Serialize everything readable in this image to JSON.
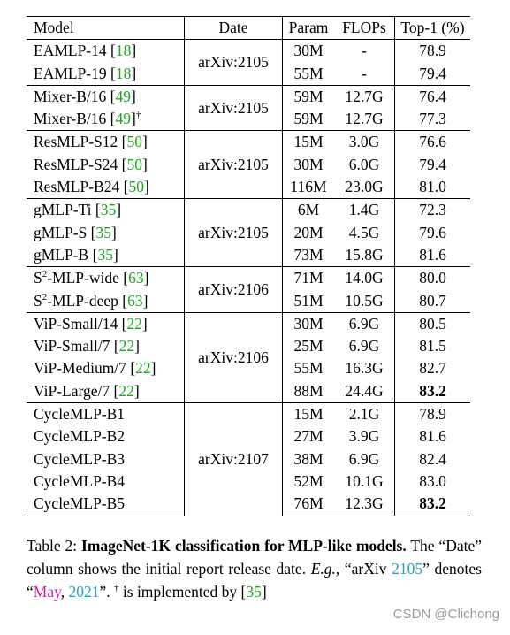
{
  "table": {
    "headers": {
      "model": "Model",
      "date": "Date",
      "param": "Param",
      "flops": "FLOPs",
      "top1": "Top-1 (%)"
    },
    "groups": [
      {
        "date": "arXiv:2105",
        "rows": [
          {
            "model": "EAMLP-14",
            "cite": "18",
            "dagger": "",
            "param": "30M",
            "flops": "-",
            "top1": "78.9",
            "bold": false
          },
          {
            "model": "EAMLP-19",
            "cite": "18",
            "dagger": "",
            "param": "55M",
            "flops": "-",
            "top1": "79.4",
            "bold": false
          }
        ]
      },
      {
        "date": "arXiv:2105",
        "rows": [
          {
            "model": "Mixer-B/16",
            "cite": "49",
            "dagger": "",
            "param": "59M",
            "flops": "12.7G",
            "top1": "76.4",
            "bold": false
          },
          {
            "model": "Mixer-B/16",
            "cite": "49",
            "dagger": "†",
            "param": "59M",
            "flops": "12.7G",
            "top1": "77.3",
            "bold": false
          }
        ]
      },
      {
        "date": "arXiv:2105",
        "rows": [
          {
            "model": "ResMLP-S12",
            "cite": "50",
            "dagger": "",
            "param": "15M",
            "flops": "3.0G",
            "top1": "76.6",
            "bold": false
          },
          {
            "model": "ResMLP-S24",
            "cite": "50",
            "dagger": "",
            "param": "30M",
            "flops": "6.0G",
            "top1": "79.4",
            "bold": false
          },
          {
            "model": "ResMLP-B24",
            "cite": "50",
            "dagger": "",
            "param": "116M",
            "flops": "23.0G",
            "top1": "81.0",
            "bold": false
          }
        ]
      },
      {
        "date": "arXiv:2105",
        "rows": [
          {
            "model": "gMLP-Ti",
            "cite": "35",
            "dagger": "",
            "param": "6M",
            "flops": "1.4G",
            "top1": "72.3",
            "bold": false
          },
          {
            "model": "gMLP-S",
            "cite": "35",
            "dagger": "",
            "param": "20M",
            "flops": "4.5G",
            "top1": "79.6",
            "bold": false
          },
          {
            "model": "gMLP-B",
            "cite": "35",
            "dagger": "",
            "param": "73M",
            "flops": "15.8G",
            "top1": "81.6",
            "bold": false
          }
        ]
      },
      {
        "date": "arXiv:2106",
        "rows": [
          {
            "model": "S",
            "sup": "2",
            "model_rest": "-MLP-wide",
            "cite": "63",
            "dagger": "",
            "param": "71M",
            "flops": "14.0G",
            "top1": "80.0",
            "bold": false
          },
          {
            "model": "S",
            "sup": "2",
            "model_rest": "-MLP-deep",
            "cite": "63",
            "dagger": "",
            "param": "51M",
            "flops": "10.5G",
            "top1": "80.7",
            "bold": false
          }
        ]
      },
      {
        "date": "arXiv:2106",
        "rows": [
          {
            "model": "ViP-Small/14",
            "cite": "22",
            "dagger": "",
            "param": "30M",
            "flops": "6.9G",
            "top1": "80.5",
            "bold": false
          },
          {
            "model": "ViP-Small/7",
            "cite": "22",
            "dagger": "",
            "param": "25M",
            "flops": "6.9G",
            "top1": "81.5",
            "bold": false
          },
          {
            "model": "ViP-Medium/7",
            "cite": "22",
            "dagger": "",
            "param": "55M",
            "flops": "16.3G",
            "top1": "82.7",
            "bold": false
          },
          {
            "model": "ViP-Large/7",
            "cite": "22",
            "dagger": "",
            "param": "88M",
            "flops": "24.4G",
            "top1": "83.2",
            "bold": true
          }
        ]
      },
      {
        "date": "arXiv:2107",
        "rows": [
          {
            "model": "CycleMLP-B1",
            "cite": "",
            "dagger": "",
            "param": "15M",
            "flops": "2.1G",
            "top1": "78.9",
            "bold": false
          },
          {
            "model": "CycleMLP-B2",
            "cite": "",
            "dagger": "",
            "param": "27M",
            "flops": "3.9G",
            "top1": "81.6",
            "bold": false
          },
          {
            "model": "CycleMLP-B3",
            "cite": "",
            "dagger": "",
            "param": "38M",
            "flops": "6.9G",
            "top1": "82.4",
            "bold": false
          },
          {
            "model": "CycleMLP-B4",
            "cite": "",
            "dagger": "",
            "param": "52M",
            "flops": "10.1G",
            "top1": "83.0",
            "bold": false
          },
          {
            "model": "CycleMLP-B5",
            "cite": "",
            "dagger": "",
            "param": "76M",
            "flops": "12.3G",
            "top1": "83.2",
            "bold": true
          }
        ]
      }
    ]
  },
  "caption": {
    "label": "Table 2: ",
    "title": "ImageNet-1K classification for MLP-like models.",
    "text1": " The “Date” column shows the initial report release date. ",
    "eg": "E.g.",
    "text2": ", “arXiv ",
    "code": "2105",
    "text3": "” denotes “",
    "month": "May",
    "comma": ", ",
    "year": "2021",
    "text4": "”. ",
    "dagger": "†",
    "text5": " is implemented by [",
    "cite": "35",
    "text6": "]"
  },
  "watermark": "CSDN @Clichong",
  "colors": {
    "cite": "#1aa81a",
    "cyan": "#17a8c4",
    "magenta": "#d1239a"
  }
}
